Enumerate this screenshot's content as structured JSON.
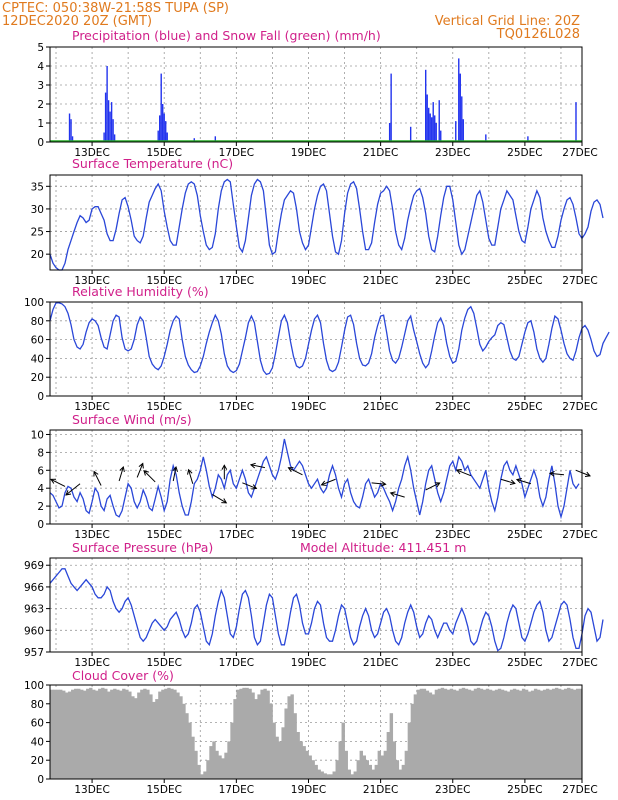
{
  "header": {
    "line1_left": "CPTEC:   050:38W-21:58S   TUPA (SP)",
    "line2_left": "12DEC2020 20Z (GMT)",
    "line2_right": "Vertical Grid Line: 20Z",
    "line3_right": "TQ0126L028"
  },
  "colors": {
    "header": "#e07a1e",
    "title": "#d0208a",
    "rain": "#2233ee",
    "snow": "#22aa22",
    "line": "#2a47d8",
    "cloud": "#aaaaaa",
    "arrow": "#000000"
  },
  "x_axis": {
    "hours_span": 354,
    "tick_labels": [
      "13DEC",
      "15DEC",
      "17DEC",
      "19DEC",
      "21DEC",
      "23DEC",
      "25DEC",
      "27DEC"
    ],
    "tick_hours": [
      28,
      76,
      124,
      172,
      220,
      268,
      316,
      364
    ],
    "grid_hours": [
      4,
      28,
      52,
      76,
      100,
      124,
      148,
      172,
      196,
      220,
      244,
      268,
      292,
      316,
      340
    ]
  },
  "chart_data": [
    {
      "id": "precip",
      "type": "bar",
      "title": "Precipitation (blue) and Snow Fall (green) (mm/h)",
      "ylim": [
        0,
        5
      ],
      "yticks": [
        0,
        1,
        2,
        3,
        4,
        5
      ],
      "series": [
        {
          "name": "Precipitation",
          "color": "#2233ee",
          "points": [
            [
              13,
              1.5
            ],
            [
              14,
              1.2
            ],
            [
              15,
              0.3
            ],
            [
              36,
              0.5
            ],
            [
              37,
              2.6
            ],
            [
              38,
              4.0
            ],
            [
              39,
              2.2
            ],
            [
              40,
              1.6
            ],
            [
              41,
              2.1
            ],
            [
              42,
              1.2
            ],
            [
              43,
              0.4
            ],
            [
              72,
              0.6
            ],
            [
              73,
              1.4
            ],
            [
              74,
              3.6
            ],
            [
              75,
              2.0
            ],
            [
              76,
              1.5
            ],
            [
              77,
              1.1
            ],
            [
              78,
              0.5
            ],
            [
              96,
              0.2
            ],
            [
              110,
              0.3
            ],
            [
              226,
              1.0
            ],
            [
              227,
              3.6
            ],
            [
              240,
              0.8
            ],
            [
              250,
              3.8
            ],
            [
              251,
              2.5
            ],
            [
              252,
              1.8
            ],
            [
              253,
              1.5
            ],
            [
              254,
              1.3
            ],
            [
              255,
              2.1
            ],
            [
              256,
              1.4
            ],
            [
              257,
              1.0
            ],
            [
              259,
              2.2
            ],
            [
              260,
              0.6
            ],
            [
              270,
              1.1
            ],
            [
              272,
              4.4
            ],
            [
              273,
              3.6
            ],
            [
              274,
              2.4
            ],
            [
              275,
              1.2
            ],
            [
              290,
              0.4
            ],
            [
              318,
              0.3
            ],
            [
              350,
              2.1
            ]
          ]
        },
        {
          "name": "Snow Fall",
          "color": "#22aa22",
          "baseline": 0.05
        }
      ]
    },
    {
      "id": "temperature",
      "type": "line",
      "title": "Surface Temperature (nC)",
      "ylim": [
        16.5,
        37.5
      ],
      "yticks": [
        20,
        25,
        30,
        35
      ],
      "x_start": 0,
      "x_step": 2,
      "values": [
        20,
        18,
        17,
        16.5,
        16.5,
        18,
        21,
        23,
        25,
        27,
        28.5,
        28,
        27,
        27.5,
        30,
        30.5,
        30.5,
        29,
        27.5,
        24.5,
        23,
        23,
        25.5,
        29,
        32,
        32.5,
        30.5,
        27.5,
        24,
        23,
        22.5,
        24,
        28,
        31.5,
        33,
        34.5,
        35.5,
        34,
        29.5,
        26,
        23,
        22,
        22,
        26,
        30,
        33.5,
        35.5,
        36,
        35.5,
        33,
        28.5,
        25,
        22,
        21,
        21.5,
        24.5,
        30,
        34,
        36,
        36.5,
        36,
        31,
        26,
        21.5,
        20.5,
        23,
        28,
        33,
        35.5,
        36.5,
        36,
        34,
        28,
        22,
        20,
        20.5,
        25,
        29,
        32,
        33,
        34,
        33.5,
        30,
        25,
        22.5,
        21,
        22,
        26,
        30,
        33,
        35,
        35.5,
        34,
        29,
        24,
        20.5,
        20,
        23,
        29,
        33.5,
        35.5,
        36,
        34.5,
        30,
        25,
        21,
        21,
        22.5,
        27,
        31,
        33.5,
        34,
        35,
        34,
        30,
        25,
        22,
        21,
        23.5,
        27.5,
        30.5,
        33,
        34,
        34.5,
        32.5,
        29,
        24,
        21,
        20.5,
        24,
        28.5,
        32.5,
        35,
        35,
        32,
        27,
        22,
        20,
        21,
        24,
        27,
        30,
        33,
        34,
        31.5,
        27.5,
        23.5,
        22,
        22,
        26,
        30,
        32,
        34,
        33,
        32,
        28.5,
        25,
        23,
        22.5,
        26,
        30,
        32,
        34,
        32.5,
        28,
        25,
        23,
        21.5,
        21.5,
        24,
        27.5,
        30,
        32,
        32.5,
        31,
        28,
        24.5,
        23.5,
        24.5,
        26,
        29.5,
        31.5,
        32,
        31,
        28
      ]
    },
    {
      "id": "humidity",
      "type": "line",
      "title": "Relative Humidity (%)",
      "ylim": [
        0,
        100
      ],
      "yticks": [
        0,
        20,
        40,
        60,
        80,
        100
      ],
      "x_start": 0,
      "x_step": 2,
      "values": [
        80,
        92,
        99,
        99,
        98,
        95,
        88,
        76,
        60,
        52,
        50,
        55,
        68,
        78,
        82,
        80,
        75,
        62,
        52,
        50,
        65,
        80,
        86,
        84,
        62,
        50,
        48,
        50,
        60,
        76,
        84,
        80,
        62,
        42,
        34,
        30,
        28,
        32,
        42,
        55,
        70,
        80,
        85,
        82,
        60,
        42,
        33,
        28,
        25,
        26,
        32,
        42,
        56,
        68,
        78,
        86,
        80,
        66,
        45,
        32,
        27,
        25,
        27,
        34,
        48,
        62,
        78,
        85,
        78,
        58,
        38,
        27,
        23,
        24,
        30,
        45,
        63,
        80,
        86,
        78,
        58,
        42,
        32,
        30,
        32,
        40,
        55,
        70,
        82,
        86,
        78,
        56,
        38,
        28,
        26,
        28,
        36,
        52,
        70,
        84,
        86,
        76,
        56,
        40,
        33,
        32,
        35,
        45,
        62,
        75,
        85,
        86,
        68,
        48,
        38,
        35,
        40,
        52,
        66,
        80,
        85,
        70,
        58,
        45,
        35,
        30,
        34,
        48,
        64,
        78,
        83,
        75,
        56,
        42,
        35,
        37,
        50,
        70,
        83,
        92,
        95,
        88,
        72,
        55,
        48,
        52,
        58,
        62,
        65,
        75,
        78,
        76,
        62,
        48,
        40,
        38,
        42,
        55,
        68,
        78,
        80,
        68,
        50,
        40,
        36,
        40,
        55,
        72,
        85,
        82,
        70,
        56,
        45,
        40,
        38,
        48,
        62,
        72,
        75,
        70,
        60,
        48,
        42,
        44,
        56,
        62,
        68
      ]
    },
    {
      "id": "wind",
      "type": "line",
      "title": "Surface Wind (m/s)",
      "ylim": [
        0,
        10.5
      ],
      "yticks": [
        0,
        2,
        4,
        6,
        8,
        10
      ],
      "x_start": 0,
      "x_step": 2,
      "values": [
        3.5,
        3.2,
        2.5,
        1.8,
        2.0,
        3.5,
        4.2,
        4.0,
        3.0,
        2.5,
        3.5,
        2.8,
        1.5,
        1.2,
        2.5,
        4.0,
        3.5,
        2.0,
        1.5,
        2.8,
        3.2,
        2.0,
        1.0,
        0.8,
        1.5,
        3.0,
        4.5,
        4.0,
        2.5,
        1.8,
        2.5,
        3.8,
        3.0,
        1.8,
        1.5,
        2.8,
        4.2,
        3.0,
        1.5,
        2.5,
        5.0,
        6.5,
        5.5,
        3.5,
        2.0,
        1.0,
        1.0,
        2.5,
        4.5,
        5.0,
        6.0,
        7.5,
        6.0,
        4.2,
        3.0,
        4.0,
        5.5,
        5.0,
        4.0,
        5.5,
        6.0,
        4.5,
        4.0,
        5.0,
        6.0,
        5.0,
        3.5,
        3.0,
        4.0,
        5.0,
        6.0,
        7.0,
        7.5,
        6.5,
        5.5,
        5.0,
        6.0,
        7.5,
        9.5,
        8.0,
        6.5,
        6.0,
        6.5,
        7.0,
        6.5,
        5.5,
        4.5,
        4.0,
        4.5,
        5.0,
        4.0,
        3.5,
        4.0,
        5.5,
        6.5,
        5.5,
        4.0,
        3.0,
        4.5,
        5.0,
        3.5,
        2.5,
        2.0,
        1.8,
        3.0,
        4.5,
        5.0,
        4.0,
        3.0,
        3.5,
        4.5,
        4.0,
        3.2,
        2.5,
        1.5,
        2.5,
        4.0,
        5.0,
        6.5,
        7.5,
        6.0,
        4.0,
        2.5,
        1.0,
        2.5,
        4.5,
        6.0,
        6.5,
        5.0,
        3.5,
        2.5,
        3.5,
        5.0,
        6.5,
        7.0,
        6.0,
        7.5,
        7.0,
        6.0,
        6.5,
        5.5,
        5.0,
        4.5,
        4.0,
        5.0,
        6.0,
        4.0,
        2.5,
        1.5,
        3.0,
        5.0,
        6.5,
        7.0,
        6.0,
        5.5,
        6.5,
        5.5,
        4.5,
        3.0,
        4.0,
        5.0,
        6.0,
        5.0,
        3.0,
        2.0,
        3.0,
        5.0,
        6.5,
        4.5,
        2.0,
        0.8,
        2.0,
        4.0,
        6.0,
        4.5,
        4.0,
        4.5
      ]
    },
    {
      "id": "pressure",
      "type": "line",
      "title": "Surface Pressure (hPa)",
      "annotation": "Model Altitude: 411.451  m",
      "ylim": [
        957,
        970
      ],
      "yticks": [
        957,
        960,
        963,
        966,
        969
      ],
      "x_start": 0,
      "x_step": 2,
      "values": [
        966.5,
        967,
        967.5,
        968,
        968.5,
        968.5,
        967.5,
        966.5,
        966,
        965.5,
        966,
        966.5,
        967,
        966.5,
        966,
        965,
        964.5,
        964.5,
        965,
        966,
        965.5,
        964,
        963,
        962.5,
        963,
        964,
        964.5,
        963.5,
        962,
        960.5,
        959,
        958.5,
        959,
        960,
        961,
        961.5,
        961,
        960.5,
        960,
        960.5,
        961.5,
        962,
        962.5,
        961.5,
        960,
        959,
        959.5,
        961,
        963,
        963.5,
        962.5,
        960.5,
        958.5,
        958,
        959.5,
        962,
        964,
        965.5,
        964.5,
        962,
        959.5,
        959,
        960.5,
        963,
        965,
        965.5,
        964.5,
        962,
        959,
        958,
        958.5,
        961,
        963.5,
        965,
        964.5,
        962,
        959.5,
        958,
        958,
        960,
        962.5,
        964.5,
        965,
        963.5,
        961,
        959.5,
        959.5,
        961,
        963,
        964,
        963.5,
        961,
        959,
        958.5,
        958.5,
        960,
        962,
        963.5,
        963,
        961,
        959,
        958,
        958.5,
        960.5,
        962,
        963,
        962,
        960,
        959,
        959.5,
        961,
        962.5,
        963,
        962,
        960,
        958.5,
        958,
        959,
        961,
        962.5,
        963.5,
        962.5,
        960.5,
        959,
        959.5,
        961,
        962,
        961.5,
        960,
        959,
        960,
        961,
        961,
        960,
        959.5,
        961,
        962,
        963,
        962,
        960.5,
        958.5,
        958,
        958.5,
        960,
        961.5,
        962.5,
        962,
        960.5,
        958.5,
        957.2,
        957.5,
        959,
        961,
        962.5,
        963.5,
        963,
        961,
        959,
        958.5,
        959.5,
        961,
        962.5,
        963.5,
        964,
        962.5,
        960,
        958.5,
        959,
        960.5,
        962,
        963.5,
        964,
        963.5,
        961.5,
        959,
        957.5,
        957.5,
        959.5,
        962,
        963,
        962.5,
        960.5,
        958.5,
        959,
        961.5
      ]
    },
    {
      "id": "cloud",
      "type": "bar",
      "title": "Cloud Cover (%)",
      "ylim": [
        0,
        100
      ],
      "yticks": [
        0,
        20,
        40,
        60,
        80,
        100
      ],
      "x_start": 0,
      "x_step": 2,
      "values": [
        95,
        95,
        95,
        95,
        94,
        92,
        93,
        95,
        96,
        96,
        95,
        94,
        96,
        97,
        95,
        94,
        96,
        97,
        96,
        93,
        95,
        96,
        95,
        94,
        96,
        95,
        93,
        88,
        86,
        92,
        95,
        96,
        95,
        90,
        82,
        85,
        93,
        95,
        96,
        97,
        96,
        95,
        92,
        88,
        80,
        70,
        60,
        45,
        30,
        15,
        5,
        8,
        20,
        35,
        40,
        30,
        25,
        22,
        28,
        40,
        60,
        85,
        95,
        96,
        97,
        97,
        96,
        92,
        85,
        90,
        95,
        96,
        94,
        80,
        60,
        45,
        40,
        55,
        75,
        88,
        90,
        70,
        50,
        40,
        35,
        30,
        25,
        20,
        15,
        10,
        8,
        6,
        5,
        5,
        8,
        20,
        40,
        60,
        30,
        10,
        5,
        8,
        20,
        30,
        25,
        20,
        15,
        10,
        15,
        30,
        25,
        30,
        50,
        70,
        40,
        20,
        10,
        15,
        30,
        60,
        80,
        90,
        95,
        96,
        96,
        94,
        92,
        90,
        95,
        96,
        97,
        96,
        95,
        96,
        95,
        94,
        96,
        97,
        96,
        95,
        94,
        96,
        97,
        96,
        95,
        96,
        95,
        94,
        95,
        96,
        95,
        94,
        93,
        95,
        96,
        95,
        94,
        96,
        95,
        93,
        94,
        96,
        95,
        94,
        95,
        96,
        95,
        96,
        97,
        96,
        95,
        96,
        97,
        96,
        95,
        96,
        96
      ]
    }
  ]
}
